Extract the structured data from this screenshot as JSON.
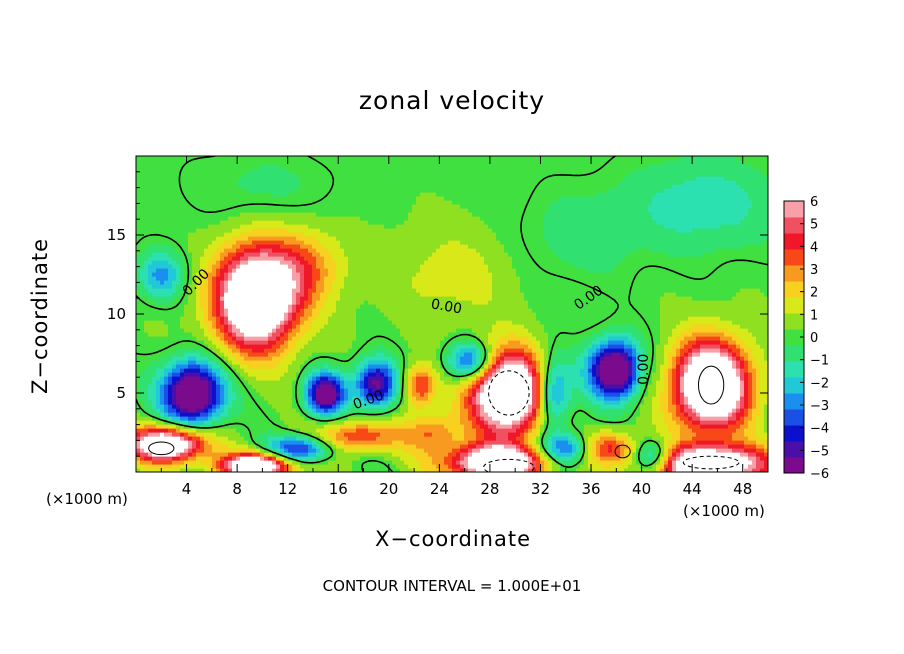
{
  "chart_data": {
    "type": "heatmap",
    "title": "zonal velocity",
    "xlabel": "X−coordinate",
    "ylabel": "Z−coordinate",
    "x_unit_label": "(×1000 m)",
    "footer": "CONTOUR INTERVAL = 1.000E+01",
    "xlim": [
      0,
      50
    ],
    "ylim": [
      0,
      20
    ],
    "x_ticks": [
      "4",
      "8",
      "12",
      "16",
      "20",
      "24",
      "28",
      "32",
      "36",
      "40",
      "44",
      "48"
    ],
    "y_ticks": [
      "5",
      "10",
      "15"
    ],
    "colorbar": {
      "range": [
        -6,
        6
      ],
      "tick_labels": [
        "6",
        "5",
        "4",
        "3",
        "2",
        "1",
        "0",
        "−1",
        "−2",
        "−3",
        "−4",
        "−5",
        "−6"
      ],
      "colors": [
        "#7b0a8c",
        "#4a0fa8",
        "#0a10cc",
        "#1a50e6",
        "#1a8ff0",
        "#20c8d8",
        "#2ce0b0",
        "#30e070",
        "#40e040",
        "#8ee020",
        "#d8e818",
        "#f8d020",
        "#f89a20",
        "#f84818",
        "#f01828",
        "#f05060",
        "#f8a0a8"
      ]
    },
    "contour_labels": [
      "0.00",
      "0.00",
      "0.00",
      "0.00",
      "0.00",
      "0.00"
    ],
    "blobs": [
      {
        "x": 9.5,
        "z": 11.0,
        "rx": 3.2,
        "rz": 3.2,
        "v": 10
      },
      {
        "x": 13.5,
        "z": 13.0,
        "rx": 3.0,
        "rz": 2.5,
        "v": 2.5
      },
      {
        "x": 29.5,
        "z": 5.0,
        "rx": 3.0,
        "rz": 2.6,
        "v": 10
      },
      {
        "x": 45.5,
        "z": 5.5,
        "rx": 3.0,
        "rz": 2.8,
        "v": 10
      },
      {
        "x": 4.5,
        "z": 5.0,
        "rx": 2.4,
        "rz": 2.0,
        "v": -8
      },
      {
        "x": 15.0,
        "z": 5.0,
        "rx": 1.5,
        "rz": 1.3,
        "v": -7
      },
      {
        "x": 19.0,
        "z": 5.6,
        "rx": 1.6,
        "rz": 1.5,
        "v": -6
      },
      {
        "x": 38.0,
        "z": 6.5,
        "rx": 2.2,
        "rz": 1.8,
        "v": -8
      },
      {
        "x": 33.0,
        "z": 5.0,
        "rx": 1.4,
        "rz": 2.2,
        "v": -5
      },
      {
        "x": 22.5,
        "z": 5.5,
        "rx": 1.2,
        "rz": 1.3,
        "v": 4
      },
      {
        "x": 26.5,
        "z": 7.0,
        "rx": 1.8,
        "rz": 1.2,
        "v": -5
      },
      {
        "x": 2.5,
        "z": 1.8,
        "rx": 3.0,
        "rz": 1.1,
        "v": 9
      },
      {
        "x": 9.5,
        "z": 0.4,
        "rx": 2.8,
        "rz": 0.8,
        "v": 9
      },
      {
        "x": 17.5,
        "z": 2.3,
        "rx": 3.2,
        "rz": 1.0,
        "v": 4
      },
      {
        "x": 23.5,
        "z": 2.5,
        "rx": 2.2,
        "rz": 1.3,
        "v": 3
      },
      {
        "x": 28.5,
        "z": 0.6,
        "rx": 3.8,
        "rz": 1.1,
        "v": 9
      },
      {
        "x": 37.5,
        "z": 1.6,
        "rx": 2.0,
        "rz": 1.0,
        "v": 4
      },
      {
        "x": 45.5,
        "z": 0.5,
        "rx": 4.5,
        "rz": 1.2,
        "v": 9
      },
      {
        "x": 13.0,
        "z": 1.5,
        "rx": 2.5,
        "rz": 0.8,
        "v": -5
      },
      {
        "x": 34.0,
        "z": 1.5,
        "rx": 2.0,
        "rz": 1.0,
        "v": -4
      },
      {
        "x": 41.0,
        "z": 1.0,
        "rx": 1.5,
        "rz": 1.0,
        "v": -4
      },
      {
        "x": 2.0,
        "z": 12.5,
        "rx": 1.8,
        "rz": 1.5,
        "v": -3
      },
      {
        "x": 40.0,
        "z": 6.5,
        "rx": 1.0,
        "rz": 1.5,
        "v": 1.5
      },
      {
        "x": 25.0,
        "z": 12.5,
        "rx": 5.0,
        "rz": 3.0,
        "v": 1.2
      },
      {
        "x": 45.0,
        "z": 17.0,
        "rx": 6.0,
        "rz": 3.0,
        "v": -1.8
      },
      {
        "x": 10.0,
        "z": 18.0,
        "rx": 6.0,
        "rz": 2.5,
        "v": -0.8
      },
      {
        "x": 35.0,
        "z": 15.0,
        "rx": 5.0,
        "rz": 3.0,
        "v": -1.0
      }
    ]
  }
}
